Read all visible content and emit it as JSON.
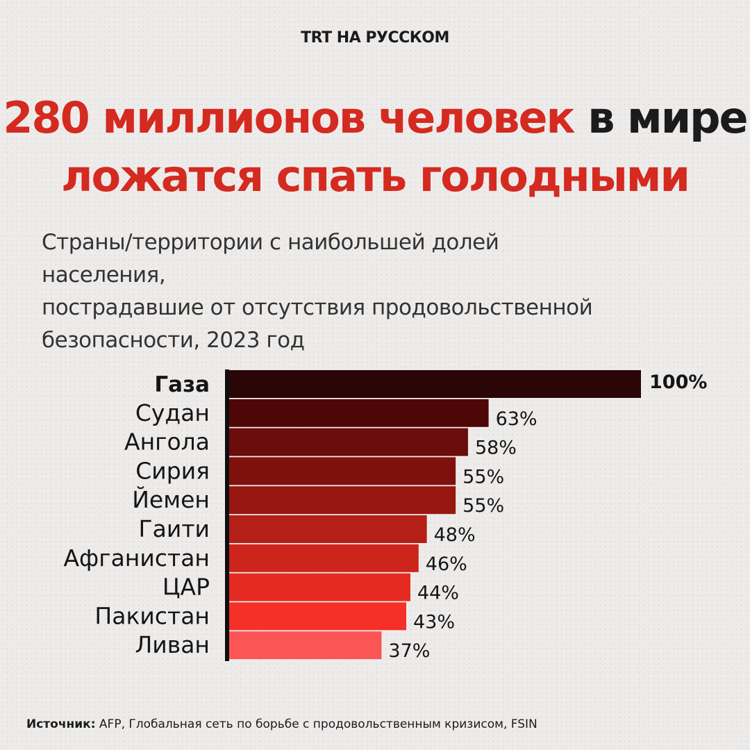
{
  "logo": "TRT НА РУССКОМ",
  "headline": {
    "part1": "280 миллионов человек",
    "part2": "в мире",
    "line2": "ложатся спать голодными"
  },
  "subtitle": {
    "line1": "Страны/территории с наибольшей долей населения,",
    "line2": "пострадавшие от отсутствия продовольственной",
    "line3": "безопасности, 2023 год"
  },
  "chart_data": {
    "type": "bar",
    "orientation": "horizontal",
    "categories": [
      "Газа",
      "Судан",
      "Ангола",
      "Сирия",
      "Йемен",
      "Гаити",
      "Афганистан",
      "ЦАР",
      "Пакистан",
      "Ливан"
    ],
    "values": [
      100,
      63,
      58,
      55,
      55,
      48,
      46,
      44,
      43,
      37
    ],
    "value_labels": [
      "100%",
      "63%",
      "58%",
      "55%",
      "55%",
      "48%",
      "46%",
      "44%",
      "43%",
      "37%"
    ],
    "colors": [
      "#2a0606",
      "#4e0707",
      "#6a0d0b",
      "#7f100c",
      "#981711",
      "#b41f17",
      "#cd241b",
      "#e42920",
      "#f53026",
      "#fb5556"
    ],
    "xlim": [
      0,
      100
    ],
    "grid": false,
    "legend": "none"
  },
  "source": {
    "label": "Источник:",
    "text": " AFP, Глобальная сеть по борьбе с продовольственным кризисом, FSIN"
  }
}
